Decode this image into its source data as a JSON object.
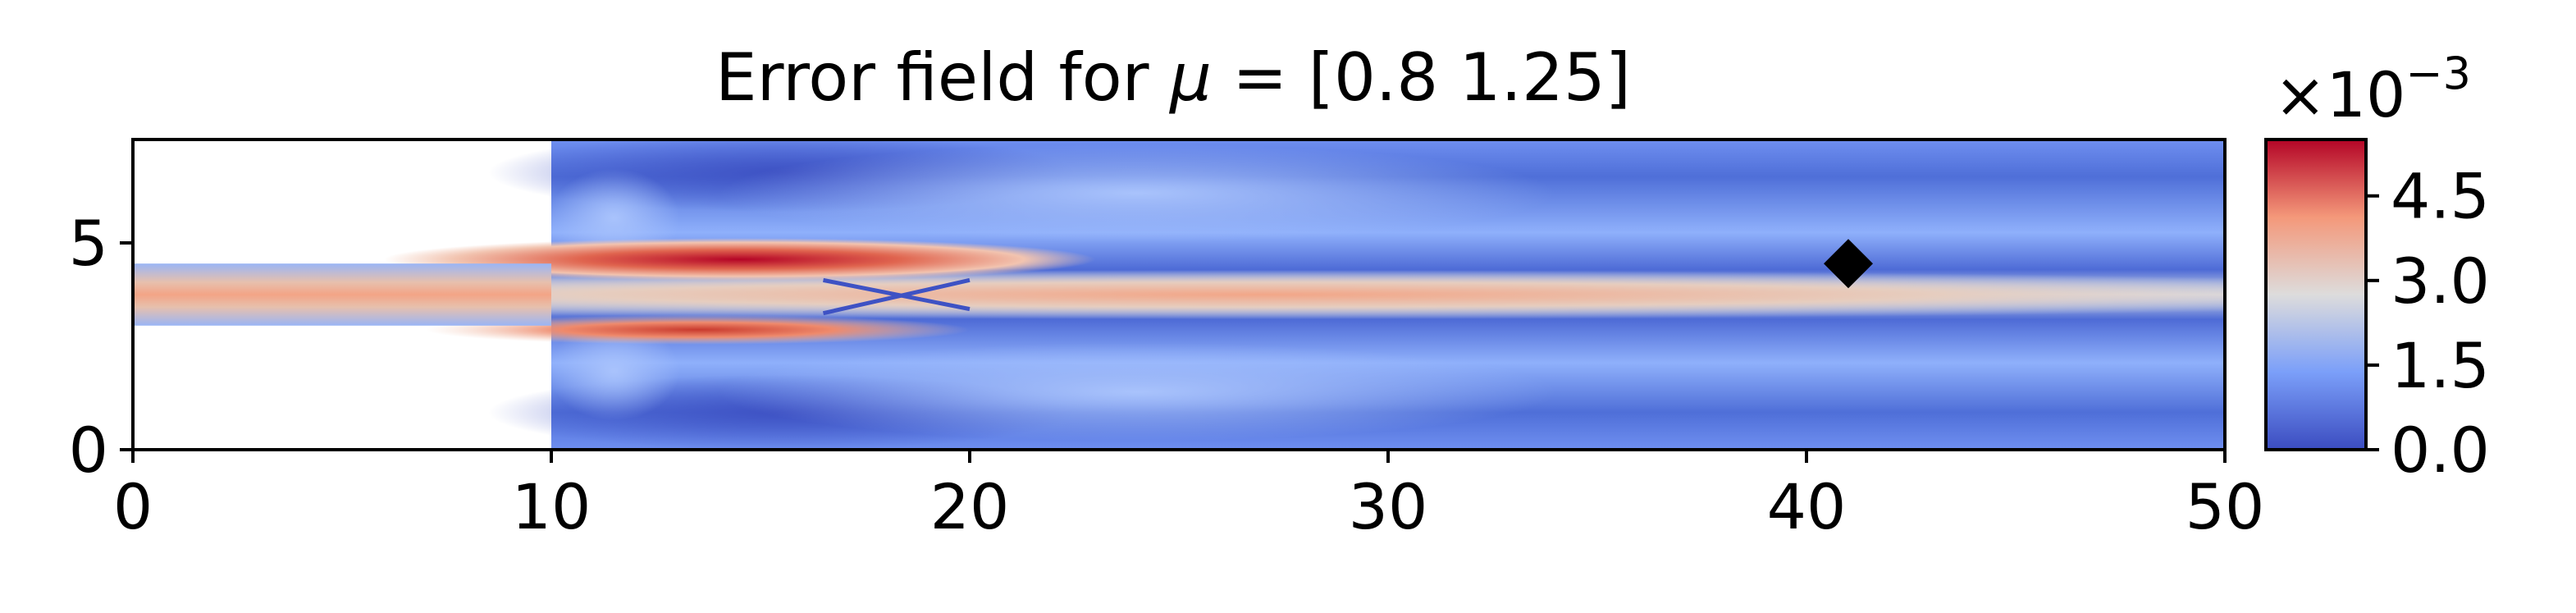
{
  "chart_data": {
    "type": "heatmap",
    "title": "Error field for μ = [0.8  1.25]",
    "title_parts": {
      "prefix": "Error field for ",
      "symbol": "μ",
      "suffix": " = [0.8  1.25]"
    },
    "xlim": [
      0,
      50
    ],
    "ylim": [
      0,
      7.5
    ],
    "x_ticks": [
      0,
      10,
      20,
      30,
      40,
      50
    ],
    "y_ticks": [
      0,
      5
    ],
    "x_tick_labels": [
      "0",
      "10",
      "20",
      "30",
      "40",
      "50"
    ],
    "y_tick_labels": [
      "0",
      "5"
    ],
    "domain": {
      "inlet_channel": {
        "x": [
          0,
          10
        ],
        "y": [
          3,
          4.5
        ]
      },
      "main_chamber": {
        "x": [
          10,
          50
        ],
        "y": [
          0,
          7.5
        ]
      }
    },
    "marker": {
      "shape": "diamond",
      "x": 41,
      "y": 4.5,
      "color": "#000000"
    },
    "colorbar": {
      "colormap": "coolwarm",
      "vmin": 0.0,
      "vmax": 5.5,
      "ticks": [
        0.0,
        1.5,
        3.0,
        4.5
      ],
      "tick_labels": [
        "0.0",
        "1.5",
        "3.0",
        "4.5"
      ],
      "multiplier_base": "×10",
      "multiplier_exponent": "−3"
    },
    "colors": {
      "low": "#3b4cc0",
      "mid": "#dddddd",
      "high": "#b40426"
    },
    "grid": false
  }
}
